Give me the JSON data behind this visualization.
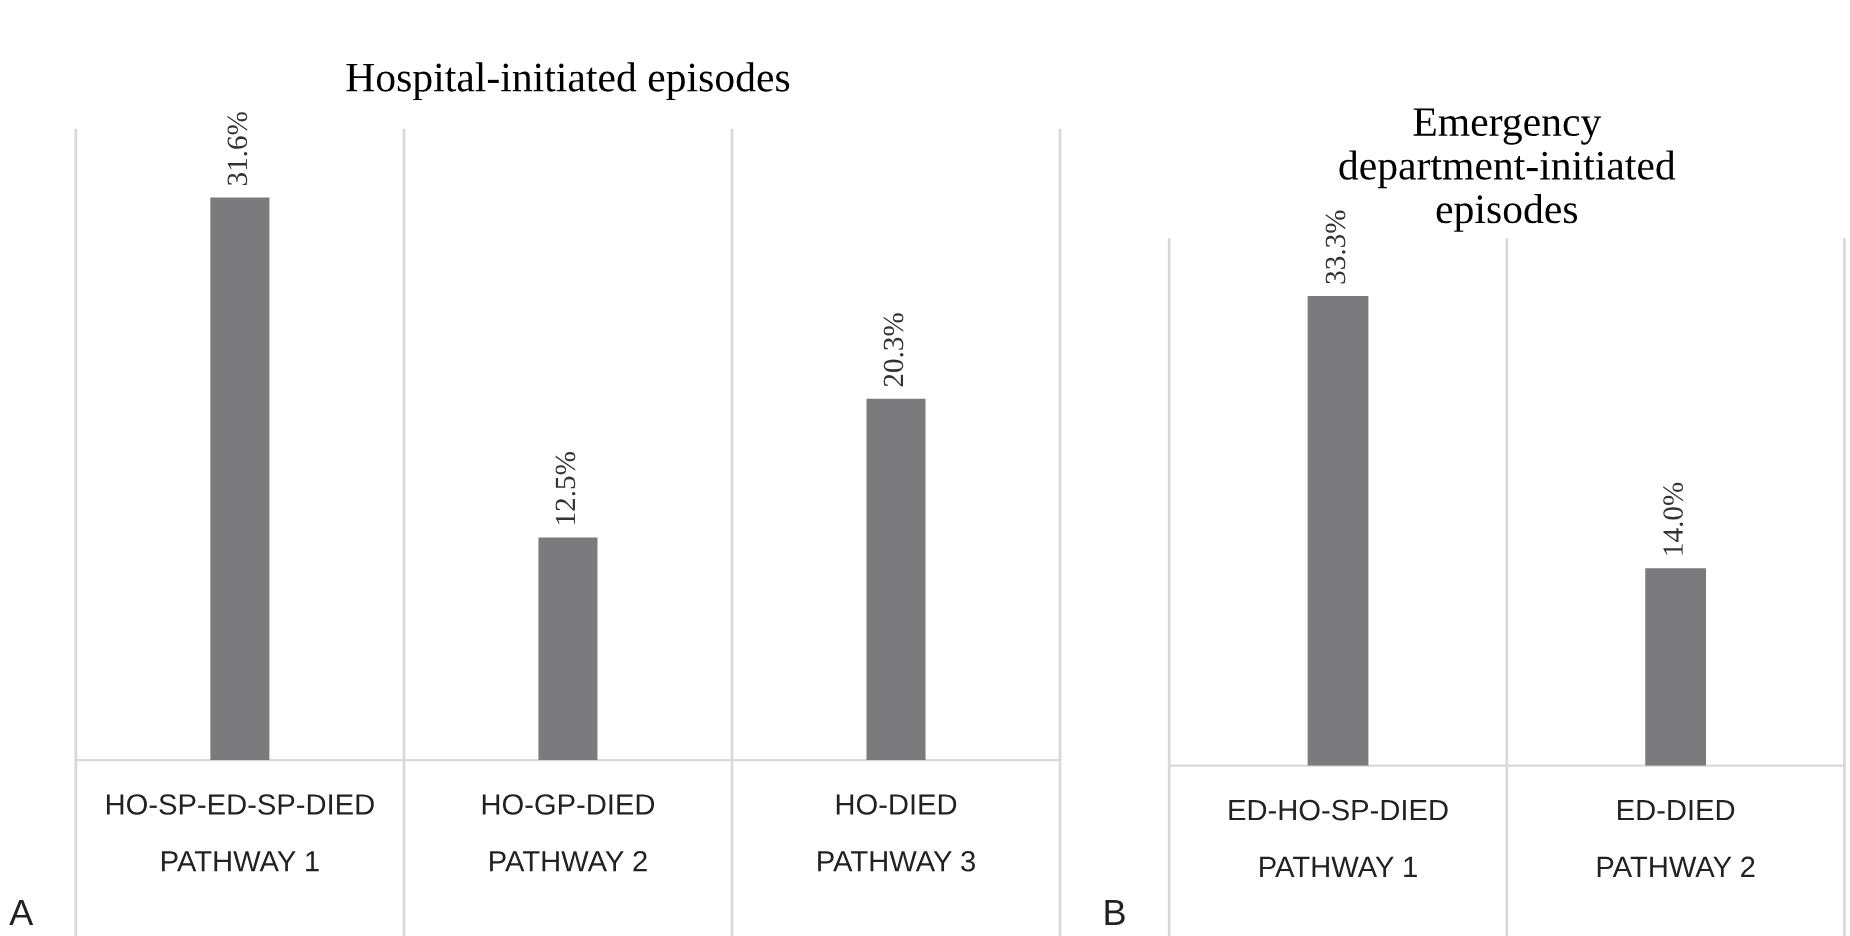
{
  "chart_data": [
    {
      "type": "bar",
      "title": "Hospital-initiated episodes",
      "categories": [
        "HO-SP-ED-SP-DIED\nPATHWAY 1",
        "HO-GP-DIED\nPATHWAY 2",
        "HO-DIED\nPATHWAY 3"
      ],
      "values": [
        31.6,
        12.5,
        20.3
      ],
      "value_labels": [
        "31.6%",
        "12.5%",
        "20.3%"
      ],
      "color": "#7b7b7e",
      "grid": "x",
      "legend": false,
      "annotations": [
        "A"
      ]
    },
    {
      "type": "bar",
      "title": "Emergency\ndepartment-initiated\nepisodes",
      "categories": [
        "ED-HO-SP-DIED\nPATHWAY 1",
        "ED-DIED\nPATHWAY 2"
      ],
      "values": [
        33.3,
        14.0
      ],
      "value_labels": [
        "33.3%",
        "14.0%"
      ],
      "color": "#7b7b7e",
      "grid": "x",
      "legend": false,
      "annotations": [
        "B"
      ]
    }
  ]
}
